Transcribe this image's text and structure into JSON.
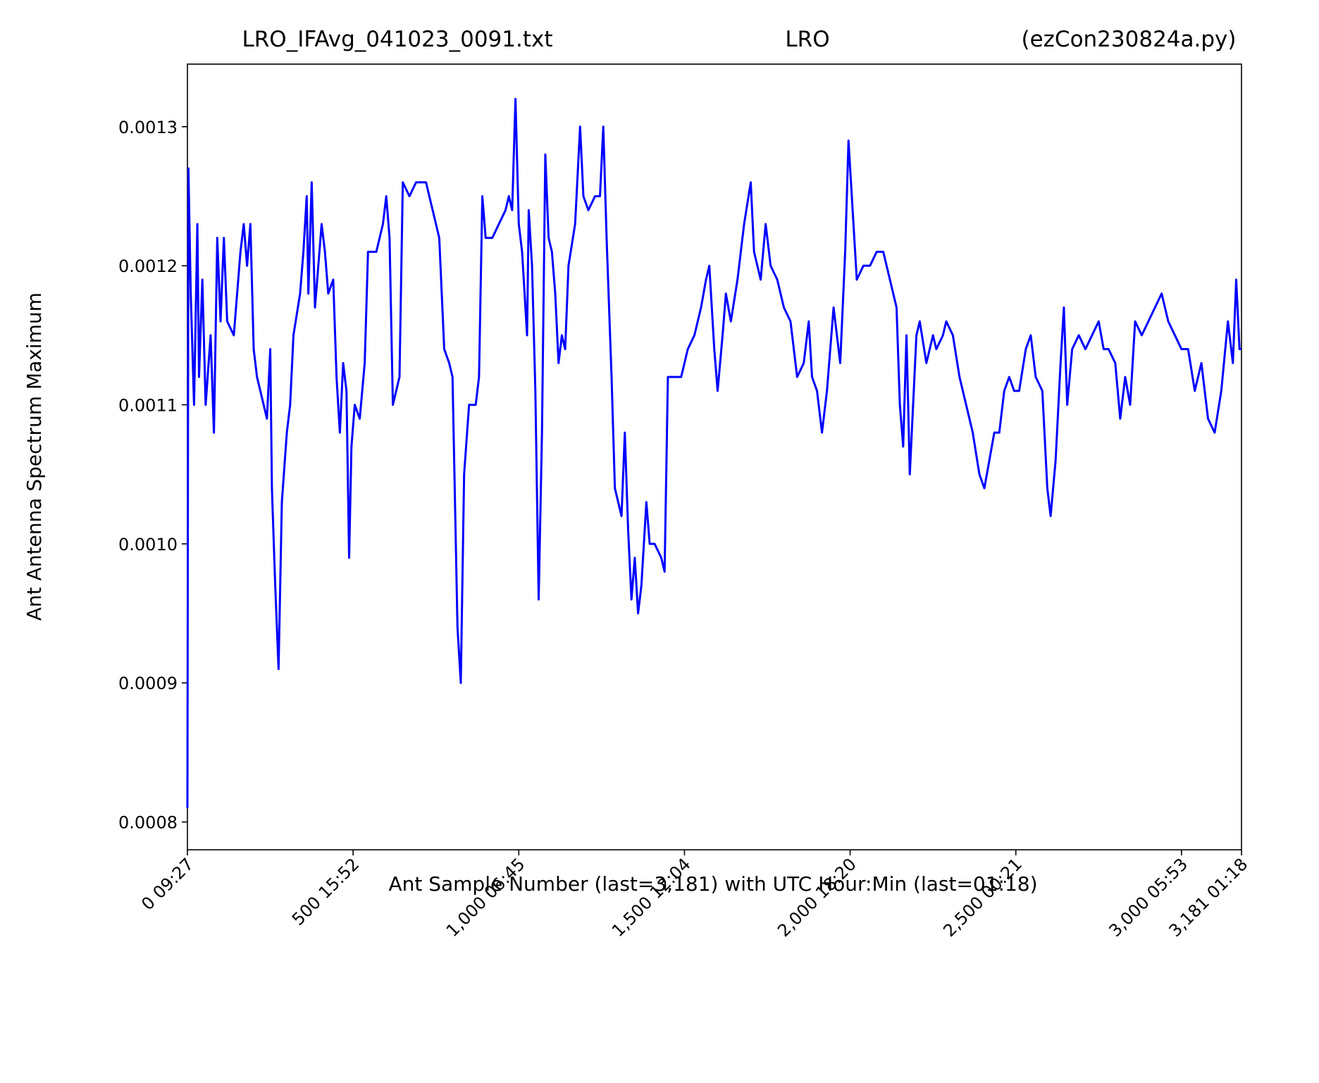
{
  "chart_data": {
    "type": "line",
    "title": [
      "LRO_IFAvg_041023_0091.txt",
      "LRO",
      "(ezCon230824a.py)"
    ],
    "x_label": "Ant Sample Number (last=3,181) with UTC Hour:Min (last=01:18)",
    "y_label": "Ant Antenna Spectrum Maximum",
    "x": [
      0,
      3,
      10,
      20,
      30,
      35,
      45,
      55,
      70,
      80,
      90,
      100,
      110,
      120,
      140,
      160,
      170,
      180,
      190,
      200,
      210,
      220,
      240,
      250,
      255,
      265,
      275,
      285,
      300,
      310,
      320,
      340,
      350,
      360,
      365,
      375,
      385,
      395,
      405,
      415,
      425,
      440,
      450,
      460,
      470,
      480,
      488,
      495,
      505,
      520,
      535,
      545,
      555,
      570,
      590,
      600,
      610,
      620,
      630,
      640,
      650,
      670,
      690,
      700,
      720,
      740,
      760,
      775,
      790,
      800,
      815,
      825,
      835,
      850,
      870,
      880,
      890,
      900,
      920,
      940,
      960,
      970,
      980,
      990,
      1000,
      1010,
      1025,
      1030,
      1040,
      1050,
      1060,
      1070,
      1080,
      1090,
      1100,
      1110,
      1120,
      1130,
      1140,
      1150,
      1170,
      1185,
      1195,
      1210,
      1230,
      1245,
      1255,
      1265,
      1280,
      1290,
      1300,
      1310,
      1320,
      1330,
      1340,
      1350,
      1360,
      1370,
      1385,
      1395,
      1410,
      1430,
      1440,
      1450,
      1470,
      1490,
      1510,
      1530,
      1550,
      1565,
      1575,
      1590,
      1600,
      1615,
      1625,
      1640,
      1660,
      1680,
      1700,
      1710,
      1730,
      1745,
      1760,
      1780,
      1800,
      1820,
      1840,
      1860,
      1875,
      1885,
      1900,
      1915,
      1930,
      1950,
      1970,
      1985,
      1995,
      2005,
      2020,
      2040,
      2060,
      2080,
      2100,
      2120,
      2140,
      2150,
      2160,
      2170,
      2180,
      2200,
      2210,
      2230,
      2250,
      2260,
      2280,
      2290,
      2310,
      2330,
      2350,
      2370,
      2390,
      2405,
      2420,
      2435,
      2450,
      2465,
      2480,
      2495,
      2510,
      2530,
      2545,
      2560,
      2580,
      2595,
      2605,
      2620,
      2635,
      2645,
      2655,
      2670,
      2690,
      2710,
      2730,
      2750,
      2765,
      2780,
      2800,
      2815,
      2830,
      2845,
      2860,
      2880,
      2900,
      2920,
      2940,
      2960,
      2980,
      3000,
      3020,
      3040,
      3060,
      3080,
      3100,
      3120,
      3140,
      3155,
      3165,
      3175,
      3181
    ],
    "series": [
      {
        "color": "#0000ff",
        "values": [
          0.00081,
          0.00127,
          0.00118,
          0.0011,
          0.00123,
          0.00112,
          0.00119,
          0.0011,
          0.00115,
          0.00108,
          0.00122,
          0.00116,
          0.00122,
          0.00116,
          0.00115,
          0.00121,
          0.00123,
          0.0012,
          0.00123,
          0.00114,
          0.00112,
          0.00111,
          0.00109,
          0.00114,
          0.00104,
          0.00097,
          0.00091,
          0.00103,
          0.00108,
          0.0011,
          0.00115,
          0.00118,
          0.00121,
          0.00125,
          0.00118,
          0.00126,
          0.00117,
          0.0012,
          0.00123,
          0.00121,
          0.00118,
          0.00119,
          0.00112,
          0.00108,
          0.00113,
          0.00111,
          0.00099,
          0.00107,
          0.0011,
          0.00109,
          0.00113,
          0.00121,
          0.00121,
          0.00121,
          0.00123,
          0.00125,
          0.00122,
          0.0011,
          0.00111,
          0.00112,
          0.00126,
          0.00125,
          0.00126,
          0.00126,
          0.00126,
          0.00124,
          0.00122,
          0.00114,
          0.00113,
          0.00112,
          0.00094,
          0.0009,
          0.00105,
          0.0011,
          0.0011,
          0.00112,
          0.00125,
          0.00122,
          0.00122,
          0.00123,
          0.00124,
          0.00125,
          0.00124,
          0.00132,
          0.00123,
          0.00121,
          0.00115,
          0.00124,
          0.0012,
          0.00111,
          0.00096,
          0.00108,
          0.00128,
          0.00122,
          0.00121,
          0.00118,
          0.00113,
          0.00115,
          0.00114,
          0.0012,
          0.00123,
          0.0013,
          0.00125,
          0.00124,
          0.00125,
          0.00125,
          0.0013,
          0.00122,
          0.00112,
          0.00104,
          0.00103,
          0.00102,
          0.00108,
          0.00101,
          0.00096,
          0.00099,
          0.00095,
          0.00097,
          0.00103,
          0.001,
          0.001,
          0.00099,
          0.00098,
          0.00112,
          0.00112,
          0.00112,
          0.00114,
          0.00115,
          0.00117,
          0.00119,
          0.0012,
          0.00114,
          0.00111,
          0.00115,
          0.00118,
          0.00116,
          0.00119,
          0.00123,
          0.00126,
          0.00121,
          0.00119,
          0.00123,
          0.0012,
          0.00119,
          0.00117,
          0.00116,
          0.00112,
          0.00113,
          0.00116,
          0.00112,
          0.00111,
          0.00108,
          0.00111,
          0.00117,
          0.00113,
          0.00121,
          0.00129,
          0.00125,
          0.00119,
          0.0012,
          0.0012,
          0.00121,
          0.00121,
          0.00119,
          0.00117,
          0.0011,
          0.00107,
          0.00115,
          0.00105,
          0.00115,
          0.00116,
          0.00113,
          0.00115,
          0.00114,
          0.00115,
          0.00116,
          0.00115,
          0.00112,
          0.0011,
          0.00108,
          0.00105,
          0.00104,
          0.00106,
          0.00108,
          0.00108,
          0.00111,
          0.00112,
          0.00111,
          0.00111,
          0.00114,
          0.00115,
          0.00112,
          0.00111,
          0.00104,
          0.00102,
          0.00106,
          0.00113,
          0.00117,
          0.0011,
          0.00114,
          0.00115,
          0.00114,
          0.00115,
          0.00116,
          0.00114,
          0.00114,
          0.00113,
          0.00109,
          0.00112,
          0.0011,
          0.00116,
          0.00115,
          0.00116,
          0.00117,
          0.00118,
          0.00116,
          0.00115,
          0.00114,
          0.00114,
          0.00111,
          0.00113,
          0.00109,
          0.00108,
          0.00111,
          0.00116,
          0.00113,
          0.00119,
          0.00114,
          0.00114
        ]
      }
    ],
    "xlim": [
      0,
      3181
    ],
    "xticks": [
      {
        "value": 0,
        "label": "0  09:27"
      },
      {
        "value": 500,
        "label": "500  15:52"
      },
      {
        "value": 1000,
        "label": "1,000  06:45"
      },
      {
        "value": 1500,
        "label": "1,500  12:04"
      },
      {
        "value": 2000,
        "label": "2,000  18:20"
      },
      {
        "value": 2500,
        "label": "2,500  00:21"
      },
      {
        "value": 3000,
        "label": "3,000  05:53"
      },
      {
        "value": 3181,
        "label": "3,181  01:18"
      }
    ],
    "ylim": [
      0.00078,
      0.001345
    ],
    "yticks": [
      0.0008,
      0.0009,
      {
        "value": 0.001,
        "label": "0.0010"
      },
      0.0011,
      0.0012,
      0.0013
    ]
  }
}
